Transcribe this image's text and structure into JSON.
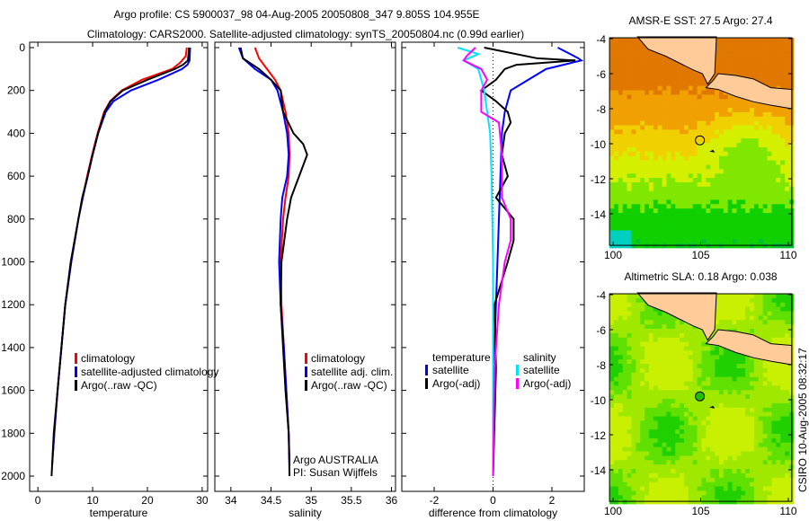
{
  "chart_data": [
    {
      "type": "line",
      "title_line1": "Argo profile: CS 5900037_98 04-Aug-2005 20050808_347 9.805S 104.955E",
      "title_line2": "Climatology: CARS2000. Satellite-adjusted climatology: synTS_20050804.nc (0.99d earlier)",
      "xlabel": "temperature",
      "xlim": [
        -1.5,
        31
      ],
      "xticks": [
        "0",
        "10",
        "20",
        "30"
      ],
      "xtick_values": [
        0,
        10,
        20,
        30
      ],
      "ylim": [
        0,
        2050
      ],
      "yticks": [
        "0",
        "200",
        "400",
        "600",
        "800",
        "1000",
        "1200",
        "1400",
        "1600",
        "1800",
        "2000"
      ],
      "ytick_values": [
        0,
        200,
        400,
        600,
        800,
        1000,
        1200,
        1400,
        1600,
        1800,
        2000
      ],
      "legend": [
        "climatology",
        "satellite-adjusted climatology",
        "Argo(..raw -QC)"
      ],
      "series": [
        {
          "name": "climatology",
          "color": "#ff0000",
          "depth": [
            0,
            40,
            70,
            100,
            150,
            200,
            250,
            300,
            400,
            500,
            600,
            700,
            800,
            1000,
            1200,
            1400,
            1600,
            1800,
            1950
          ],
          "values": [
            27.2,
            27,
            26,
            24.5,
            19,
            15.3,
            13.2,
            12.1,
            10.9,
            9.9,
            9,
            8.2,
            7.4,
            6.1,
            5,
            4.3,
            3.6,
            3,
            2.6
          ]
        },
        {
          "name": "satellite-adjusted climatology",
          "color": "#0000ff",
          "depth": [
            0,
            60,
            80,
            100,
            150,
            200,
            250,
            300,
            400,
            500,
            600,
            700,
            800,
            1000,
            1200,
            1400,
            1600,
            1800,
            1950
          ],
          "values": [
            27.8,
            27.7,
            27.3,
            26.3,
            22,
            17,
            13.8,
            12.4,
            11,
            10,
            9.1,
            8.2,
            7.4,
            6.1,
            5,
            4.3,
            3.6,
            3,
            2.6
          ]
        },
        {
          "name": "Argo(..raw -QC)",
          "color": "#000000",
          "depth": [
            0,
            60,
            80,
            100,
            150,
            200,
            250,
            300,
            400,
            500,
            600,
            700,
            800,
            1000,
            1200,
            1400,
            1600,
            1800,
            2000
          ],
          "values": [
            27.6,
            27.4,
            26.5,
            25,
            20,
            15.5,
            13.3,
            12.2,
            11,
            10,
            9.1,
            8.1,
            7.4,
            6,
            5,
            4.3,
            3.6,
            2.9,
            2.5
          ]
        }
      ]
    },
    {
      "type": "line",
      "xlabel": "salinity",
      "xlim": [
        33.8,
        36.05
      ],
      "xticks": [
        "34",
        "34.5",
        "35",
        "35.5",
        "36"
      ],
      "xtick_values": [
        34,
        34.5,
        35,
        35.5,
        36
      ],
      "ylim": [
        0,
        2050
      ],
      "legend": [
        "climatology",
        "satellite adj. clim.",
        "Argo(..raw -QC)"
      ],
      "annotation": [
        "Argo AUSTRALIA",
        "PI: Susan Wijffels"
      ],
      "series": [
        {
          "name": "climatology",
          "color": "#ff0000",
          "depth": [
            0,
            50,
            100,
            150,
            200,
            300,
            400,
            500,
            600,
            700,
            800,
            1000,
            1200,
            1400,
            1600,
            1800,
            1950
          ],
          "values": [
            34.3,
            34.35,
            34.45,
            34.55,
            34.62,
            34.68,
            34.72,
            34.73,
            34.72,
            34.68,
            34.65,
            34.62,
            34.63,
            34.66,
            34.69,
            34.72,
            34.73
          ]
        },
        {
          "name": "satellite adj. clim.",
          "color": "#0000ff",
          "depth": [
            0,
            50,
            100,
            150,
            200,
            300,
            400,
            500,
            600,
            700,
            800,
            1000,
            1200,
            1400,
            1600,
            1800,
            1950
          ],
          "values": [
            34.1,
            34.15,
            34.3,
            34.5,
            34.58,
            34.65,
            34.7,
            34.72,
            34.7,
            34.64,
            34.62,
            34.6,
            34.62,
            34.66,
            34.69,
            34.72,
            34.73
          ]
        },
        {
          "name": "Argo(..raw -QC)",
          "color": "#000000",
          "depth": [
            0,
            50,
            100,
            150,
            200,
            300,
            400,
            450,
            500,
            600,
            700,
            800,
            1000,
            1200,
            1400,
            1600,
            1800,
            2000
          ],
          "values": [
            34.12,
            34.15,
            34.35,
            34.5,
            34.62,
            34.65,
            34.78,
            34.9,
            34.95,
            34.85,
            34.75,
            34.7,
            34.63,
            34.62,
            34.65,
            34.68,
            34.72,
            34.73
          ]
        }
      ]
    },
    {
      "type": "line",
      "xlabel": "difference from climatology",
      "xlim": [
        -3.1,
        3.1
      ],
      "xticks": [
        "-2",
        "0",
        "2"
      ],
      "xtick_values": [
        -2,
        0,
        2
      ],
      "ylim": [
        0,
        2050
      ],
      "legend_headers": [
        "temperature",
        "salinity"
      ],
      "legend": [
        "satellite",
        "Argo(-adj)",
        "satellite",
        "Argo(-adj)"
      ],
      "series": [
        {
          "name": "temperature satellite",
          "color": "#0000ff",
          "depth": [
            0,
            50,
            60,
            100,
            150,
            200,
            300,
            400,
            600,
            800,
            1000,
            1400,
            2000
          ],
          "values": [
            2.2,
            2.9,
            3.0,
            1.8,
            1.2,
            0.6,
            0.4,
            0.3,
            0.25,
            0.2,
            0.15,
            0.05,
            0
          ]
        },
        {
          "name": "temperature Argo(-adj)",
          "color": "#000000",
          "depth": [
            0,
            50,
            60,
            80,
            100,
            150,
            200,
            250,
            300,
            350,
            400,
            500,
            600,
            700,
            800,
            900,
            1000,
            1200,
            1500,
            2000
          ],
          "values": [
            -0.3,
            1.5,
            2.8,
            0.8,
            0.4,
            0.1,
            -0.4,
            0.1,
            0.5,
            0.6,
            0.4,
            0.3,
            0.5,
            0.1,
            0.7,
            0.7,
            0.5,
            0.05,
            0.1,
            0
          ]
        },
        {
          "name": "salinity satellite",
          "color": "#00e5ff",
          "depth": [
            0,
            30,
            60,
            100,
            200,
            300,
            400,
            600,
            1000,
            1500,
            2000
          ],
          "values": [
            -1.2,
            -0.5,
            -1.0,
            -0.5,
            -0.3,
            -0.2,
            -0.1,
            -0.05,
            0,
            0,
            0
          ]
        },
        {
          "name": "salinity Argo(-adj)",
          "color": "#ff00ff",
          "depth": [
            0,
            40,
            60,
            100,
            150,
            200,
            300,
            350,
            500,
            700,
            800,
            900,
            1000,
            1200,
            1500,
            2000
          ],
          "values": [
            -0.6,
            -0.9,
            -1.0,
            -0.4,
            -0.2,
            -0.4,
            -0.4,
            0.2,
            0.3,
            0.3,
            0.6,
            0.6,
            0.4,
            0.2,
            0.05,
            0
          ]
        }
      ]
    },
    {
      "type": "heatmap",
      "title": "AMSR-E SST: 27.5 Argo: 27.4",
      "xticks": [
        "100",
        "105",
        "110"
      ],
      "yticks": [
        "-4",
        "-6",
        "-8",
        "-10",
        "-12",
        "-14"
      ],
      "xlim": [
        99.8,
        110.2
      ],
      "ylim": [
        -15.8,
        -3.9
      ],
      "argo_position": [
        104.955,
        -9.805
      ]
    },
    {
      "type": "heatmap",
      "title": "Altimetric SLA: 0.18 Argo: 0.038",
      "xticks": [
        "100",
        "105",
        "110"
      ],
      "yticks": [
        "-4",
        "-6",
        "-8",
        "-10",
        "-12",
        "-14"
      ],
      "xlim": [
        99.8,
        110.2
      ],
      "ylim": [
        -15.8,
        -3.9
      ],
      "argo_position": [
        104.955,
        -9.805
      ]
    }
  ],
  "footer": "CSIRO 10-Aug-2005 08:32:17"
}
